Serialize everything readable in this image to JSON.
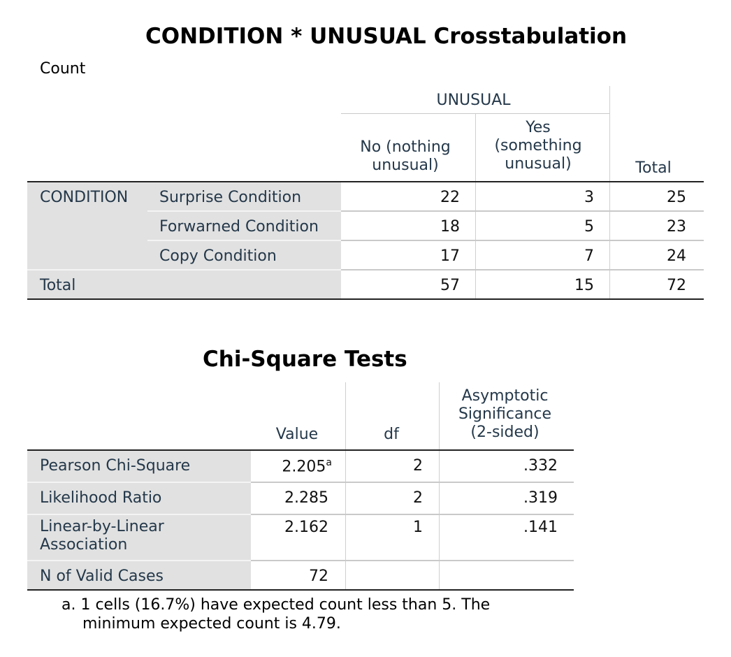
{
  "crosstab": {
    "title": "CONDITION * UNUSUAL Crosstabulation",
    "subtitle": "Count",
    "col_group": "UNUSUAL",
    "col_headers": [
      "No (nothing unusual)",
      "Yes (something unusual)",
      "Total"
    ],
    "row_group": "CONDITION",
    "rows": [
      {
        "label": "Surprise Condition",
        "values": [
          "22",
          "3",
          "25"
        ]
      },
      {
        "label": "Forwarned Condition",
        "values": [
          "18",
          "5",
          "23"
        ]
      },
      {
        "label": "Copy Condition",
        "values": [
          "17",
          "7",
          "24"
        ]
      }
    ],
    "total_row": {
      "label": "Total",
      "values": [
        "57",
        "15",
        "72"
      ]
    }
  },
  "chi": {
    "title": "Chi-Square Tests",
    "col_headers": [
      "Value",
      "df",
      "Asymptotic Significance (2-sided)"
    ],
    "rows": [
      {
        "label": "Pearson Chi-Square",
        "value": "2.205",
        "sup": "a",
        "df": "2",
        "sig": ".332"
      },
      {
        "label": "Likelihood Ratio",
        "value": "2.285",
        "df": "2",
        "sig": ".319"
      },
      {
        "label": "Linear-by-Linear Association",
        "value": "2.162",
        "df": "1",
        "sig": ".141"
      },
      {
        "label": "N of Valid Cases",
        "value": "72",
        "df": "",
        "sig": ""
      }
    ],
    "footnote_line1": "a. 1 cells (16.7%) have expected count less than 5. The",
    "footnote_line2": "minimum expected count is 4.79."
  }
}
